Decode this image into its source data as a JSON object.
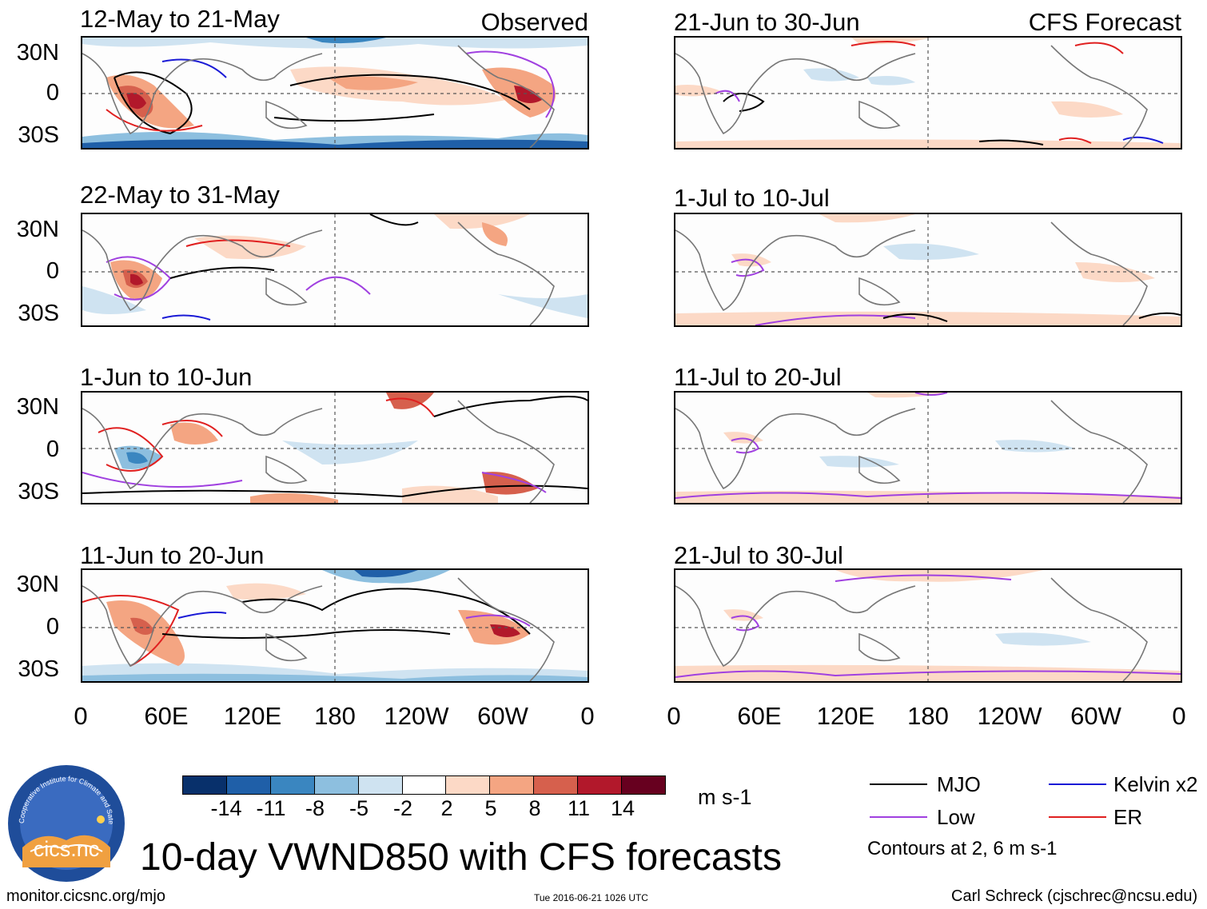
{
  "columns": {
    "observed_label": "Observed",
    "forecast_label": "CFS Forecast"
  },
  "panels_left": [
    {
      "title": "12-May to 21-May"
    },
    {
      "title": "22-May to 31-May"
    },
    {
      "title": "1-Jun to 10-Jun"
    },
    {
      "title": "11-Jun to 20-Jun"
    }
  ],
  "panels_right": [
    {
      "title": "21-Jun to 30-Jun"
    },
    {
      "title": "1-Jul to 10-Jul"
    },
    {
      "title": "11-Jul to 20-Jul"
    },
    {
      "title": "21-Jul to 30-Jul"
    }
  ],
  "lat_labels": [
    "30N",
    "0",
    "30S"
  ],
  "lon_labels": [
    "0",
    "60E",
    "120E",
    "180",
    "120W",
    "60W",
    "0"
  ],
  "colorbar": {
    "colors": [
      "#08306b",
      "#1f5fa8",
      "#3a86c0",
      "#8dbfdf",
      "#cfe3f1",
      "#ffffff",
      "#fcd9c6",
      "#f4a582",
      "#d6604d",
      "#b2182b",
      "#67001f"
    ],
    "ticks": [
      "-14",
      "-11",
      "-8",
      "-5",
      "-2",
      "2",
      "5",
      "8",
      "11",
      "14"
    ],
    "units": "m s-1"
  },
  "legend": {
    "items": [
      {
        "label": "MJO",
        "color": "#000000"
      },
      {
        "label": "Kelvin x2",
        "color": "#1a1ad6"
      },
      {
        "label": "Low",
        "color": "#a040e0"
      },
      {
        "label": "ER",
        "color": "#e02020"
      }
    ],
    "contour_note": "Contours at 2, 6 m s-1"
  },
  "main_title": "10-day VWND850 with CFS forecasts",
  "footer": {
    "url": "monitor.cicsnc.org/mjo",
    "timestamp": "Tue 2016-06-21 1026 UTC",
    "author": "Carl Schreck (cjschrec@ncsu.edu)"
  },
  "logo": {
    "ring_text": "Cooperative Institute for Climate and Satellites",
    "name": "cics.nc"
  }
}
